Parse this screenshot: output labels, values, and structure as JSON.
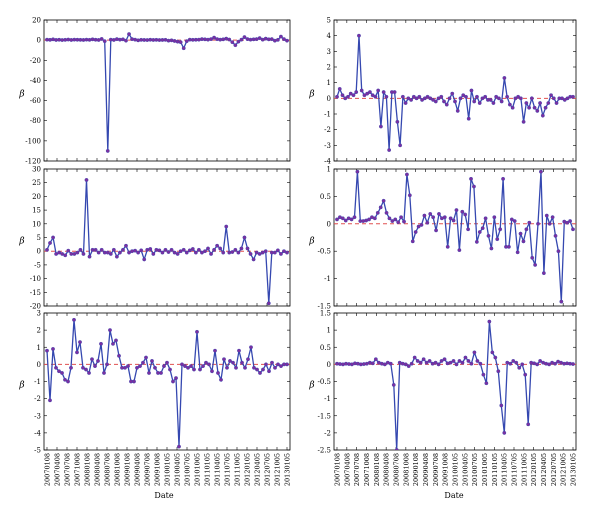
{
  "figure": {
    "xlabels": {
      "left": "Date",
      "right": "Date"
    },
    "ylabel_symbol": "β",
    "date_ticks": [
      "20070108",
      "20070408",
      "20070708",
      "20071008",
      "20080108",
      "20080408",
      "20080708",
      "20081008",
      "20090108",
      "20090408",
      "20090708",
      "20091008",
      "20100105",
      "20100405",
      "20100705",
      "20101005",
      "20110105",
      "20110405",
      "20110705",
      "20111005",
      "20120105",
      "20120405",
      "20120705",
      "20121005",
      "20130105"
    ],
    "reference_line_color": "#e05050",
    "series_color": "#3548b0",
    "marker_color": "#7b2fa0"
  },
  "chart_data": [
    {
      "type": "line",
      "ylim": [
        -120,
        20
      ],
      "yticks": [
        20,
        0,
        -20,
        -40,
        -60,
        -80,
        -100,
        -120
      ],
      "reference_line": 0,
      "values": [
        0.5,
        0.3,
        0.8,
        0.2,
        0.4,
        0.1,
        0.3,
        0.6,
        0.2,
        0.5,
        0.4,
        0.3,
        0.2,
        0.5,
        0.3,
        0.8,
        0.4,
        0.2,
        1.2,
        -1.0,
        -110,
        0.5,
        0.2,
        1.0,
        0.5,
        0.8,
        -0.5,
        6,
        1.0,
        0.5,
        -0.2,
        0.3,
        0.2,
        0.1,
        0.4,
        0.2,
        0.3,
        0.1,
        0.2,
        0.3,
        -0.5,
        -0.2,
        -0.8,
        -1.5,
        -2,
        -8,
        -1,
        0.5,
        0.3,
        0.4,
        0.5,
        1.0,
        0.8,
        0.5,
        1.0,
        2.5,
        1.0,
        0.5,
        0.8,
        1.5,
        0.6,
        -2,
        -5,
        -1.5,
        0.5,
        3,
        1,
        0.5,
        0.8,
        1,
        2,
        0.5,
        1.5,
        0.8,
        1,
        -0.5,
        0.3,
        3.5,
        1,
        -0.5
      ]
    },
    {
      "type": "line",
      "ylim": [
        -4,
        5
      ],
      "yticks": [
        5,
        4,
        3,
        2,
        1,
        0,
        -1,
        -2,
        -3,
        -4
      ],
      "reference_line": 0,
      "values": [
        0.1,
        0.6,
        0.2,
        0.0,
        0.1,
        0.3,
        0.2,
        0.4,
        4.0,
        0.5,
        0.2,
        0.3,
        0.4,
        0.2,
        0.1,
        0.5,
        -1.8,
        0.4,
        0.1,
        -3.3,
        0.4,
        0.4,
        -1.5,
        -3.0,
        0.1,
        -0.3,
        0.0,
        -0.1,
        0.1,
        0.0,
        0.1,
        -0.1,
        0.0,
        0.1,
        0.0,
        -0.1,
        -0.2,
        0.0,
        0.1,
        -0.2,
        -0.4,
        0.0,
        0.3,
        -0.2,
        -0.8,
        0.0,
        0.2,
        0.1,
        -1.3,
        0.5,
        -0.2,
        0.1,
        -0.3,
        0.0,
        0.1,
        -0.1,
        -0.1,
        -0.3,
        0.1,
        0.0,
        -0.2,
        1.3,
        0.1,
        -0.4,
        -0.6,
        0.0,
        0.1,
        0.0,
        -1.5,
        -0.3,
        -0.6,
        0.0,
        -0.6,
        -0.8,
        -0.3,
        -1.1,
        -0.6,
        -0.3,
        0.2,
        0.0,
        -0.3,
        0.0,
        0.0,
        -0.1,
        0.0,
        0.1,
        0.1
      ]
    },
    {
      "type": "line",
      "ylim": [
        -20,
        30
      ],
      "yticks": [
        30,
        25,
        20,
        15,
        10,
        5,
        0,
        -5,
        -10,
        -15,
        -20
      ],
      "reference_line": 0,
      "values": [
        0.5,
        3,
        5,
        -1,
        -0.5,
        -1,
        -1.5,
        0.2,
        -1,
        -1,
        -0.5,
        0.5,
        -1,
        26,
        -2,
        0.5,
        0.5,
        -0.5,
        0.5,
        -0.5,
        -0.5,
        -1,
        0.5,
        -2,
        -0.5,
        0.5,
        2,
        -0.5,
        0,
        0.2,
        -0.5,
        0.3,
        -3,
        0.5,
        0.8,
        -1,
        0.5,
        0.3,
        -0.5,
        0.5,
        -0.3,
        0.5,
        -0.5,
        -1,
        0,
        0.5,
        -0.5,
        0.3,
        0.8,
        -0.5,
        0.5,
        -0.5,
        0,
        1,
        -1,
        0.5,
        2,
        1,
        -0.5,
        9,
        -0.5,
        -0.3,
        0.5,
        -0.5,
        1,
        5,
        1,
        -1,
        -3,
        -0.5,
        -1,
        -0.5,
        0,
        -19,
        -0.5,
        -0.5,
        0.3,
        -1,
        0,
        -0.5
      ]
    },
    {
      "type": "line",
      "ylim": [
        -1.5,
        1.0
      ],
      "yticks": [
        1,
        0.5,
        0,
        -0.5,
        -1,
        -1.5
      ],
      "reference_line": 0,
      "values": [
        0.08,
        0.12,
        0.1,
        0.06,
        0.1,
        0.08,
        0.12,
        0.95,
        0.05,
        0.05,
        0.06,
        0.08,
        0.12,
        0.1,
        0.2,
        0.3,
        0.42,
        0.2,
        0.1,
        0.05,
        0.08,
        0.03,
        0.12,
        0.04,
        0.9,
        0.52,
        -0.32,
        -0.15,
        -0.05,
        -0.02,
        0.15,
        0.02,
        0.18,
        0.12,
        -0.12,
        0.18,
        0.1,
        0.12,
        -0.42,
        0.1,
        0.06,
        0.25,
        -0.48,
        0.22,
        0.17,
        -0.1,
        0.82,
        0.68,
        -0.33,
        -0.15,
        -0.08,
        0.1,
        -0.22,
        -0.45,
        0.12,
        -0.28,
        -0.1,
        0.82,
        -0.42,
        -0.42,
        0.08,
        0.05,
        -0.52,
        -0.18,
        -0.32,
        -0.1,
        0.02,
        -0.62,
        -0.75,
        0.0,
        0.95,
        -0.9,
        0.15,
        0.0,
        0.12,
        -0.22,
        -0.5,
        -1.42,
        0.04,
        0.02,
        0.05,
        -0.1
      ]
    },
    {
      "type": "line",
      "ylim": [
        -5,
        3
      ],
      "yticks": [
        3,
        2,
        1,
        0,
        -1,
        -2,
        -3,
        -4,
        -5
      ],
      "reference_line": 0,
      "values": [
        0.8,
        -2.1,
        0.9,
        -0.2,
        -0.4,
        -0.5,
        -0.9,
        -1.0,
        -0.2,
        2.6,
        0.7,
        1.3,
        -0.2,
        -0.3,
        -0.5,
        0.3,
        -0.1,
        0.2,
        1.2,
        -0.5,
        0.0,
        2.0,
        1.2,
        1.4,
        0.5,
        -0.2,
        -0.2,
        -0.1,
        -1.0,
        -1.0,
        -0.2,
        -0.1,
        0.1,
        0.4,
        -0.5,
        0.2,
        -0.2,
        -0.5,
        -0.5,
        -0.1,
        0.1,
        -0.3,
        -1.0,
        -0.8,
        -4.8,
        0.0,
        -0.1,
        -0.2,
        -0.1,
        -0.3,
        1.9,
        -0.3,
        -0.1,
        0.1,
        0.0,
        -0.4,
        0.8,
        -0.5,
        -0.9,
        0.3,
        -0.2,
        0.2,
        0.1,
        -0.2,
        0.8,
        0.1,
        -0.2,
        0.3,
        1.0,
        -0.2,
        -0.3,
        -0.5,
        -0.3,
        0.0,
        -0.4,
        0.1,
        -0.2,
        0.0,
        -0.1,
        0.0,
        0.0
      ]
    },
    {
      "type": "line",
      "ylim": [
        -2.5,
        1.5
      ],
      "yticks": [
        1.5,
        1,
        0.5,
        0,
        -0.5,
        -1,
        -1.5,
        -2,
        -2.5
      ],
      "reference_line": 0,
      "values": [
        0.02,
        0.01,
        0.0,
        0.02,
        0.01,
        0.0,
        0.03,
        0.02,
        0.0,
        0.01,
        0.02,
        0.05,
        0.03,
        0.15,
        0.05,
        0.02,
        0.0,
        0.05,
        0.02,
        -0.6,
        -2.5,
        0.05,
        0.02,
        0.0,
        -0.05,
        0.02,
        0.2,
        0.1,
        0.05,
        0.15,
        0.05,
        0.1,
        0.02,
        0.05,
        0.0,
        0.1,
        0.15,
        0.03,
        0.05,
        0.1,
        0.0,
        0.1,
        0.05,
        0.2,
        0.1,
        0.02,
        0.35,
        0.1,
        0.02,
        -0.3,
        -0.55,
        1.25,
        0.35,
        0.2,
        -0.2,
        -1.2,
        -2.0,
        0.05,
        0.02,
        0.1,
        0.05,
        -0.1,
        0.0,
        -0.3,
        -1.75,
        0.05,
        0.03,
        0.0,
        0.1,
        0.05,
        0.02,
        0.0,
        0.05,
        0.02,
        0.08,
        0.05,
        0.02,
        0.03,
        0.02,
        0.01
      ]
    }
  ]
}
